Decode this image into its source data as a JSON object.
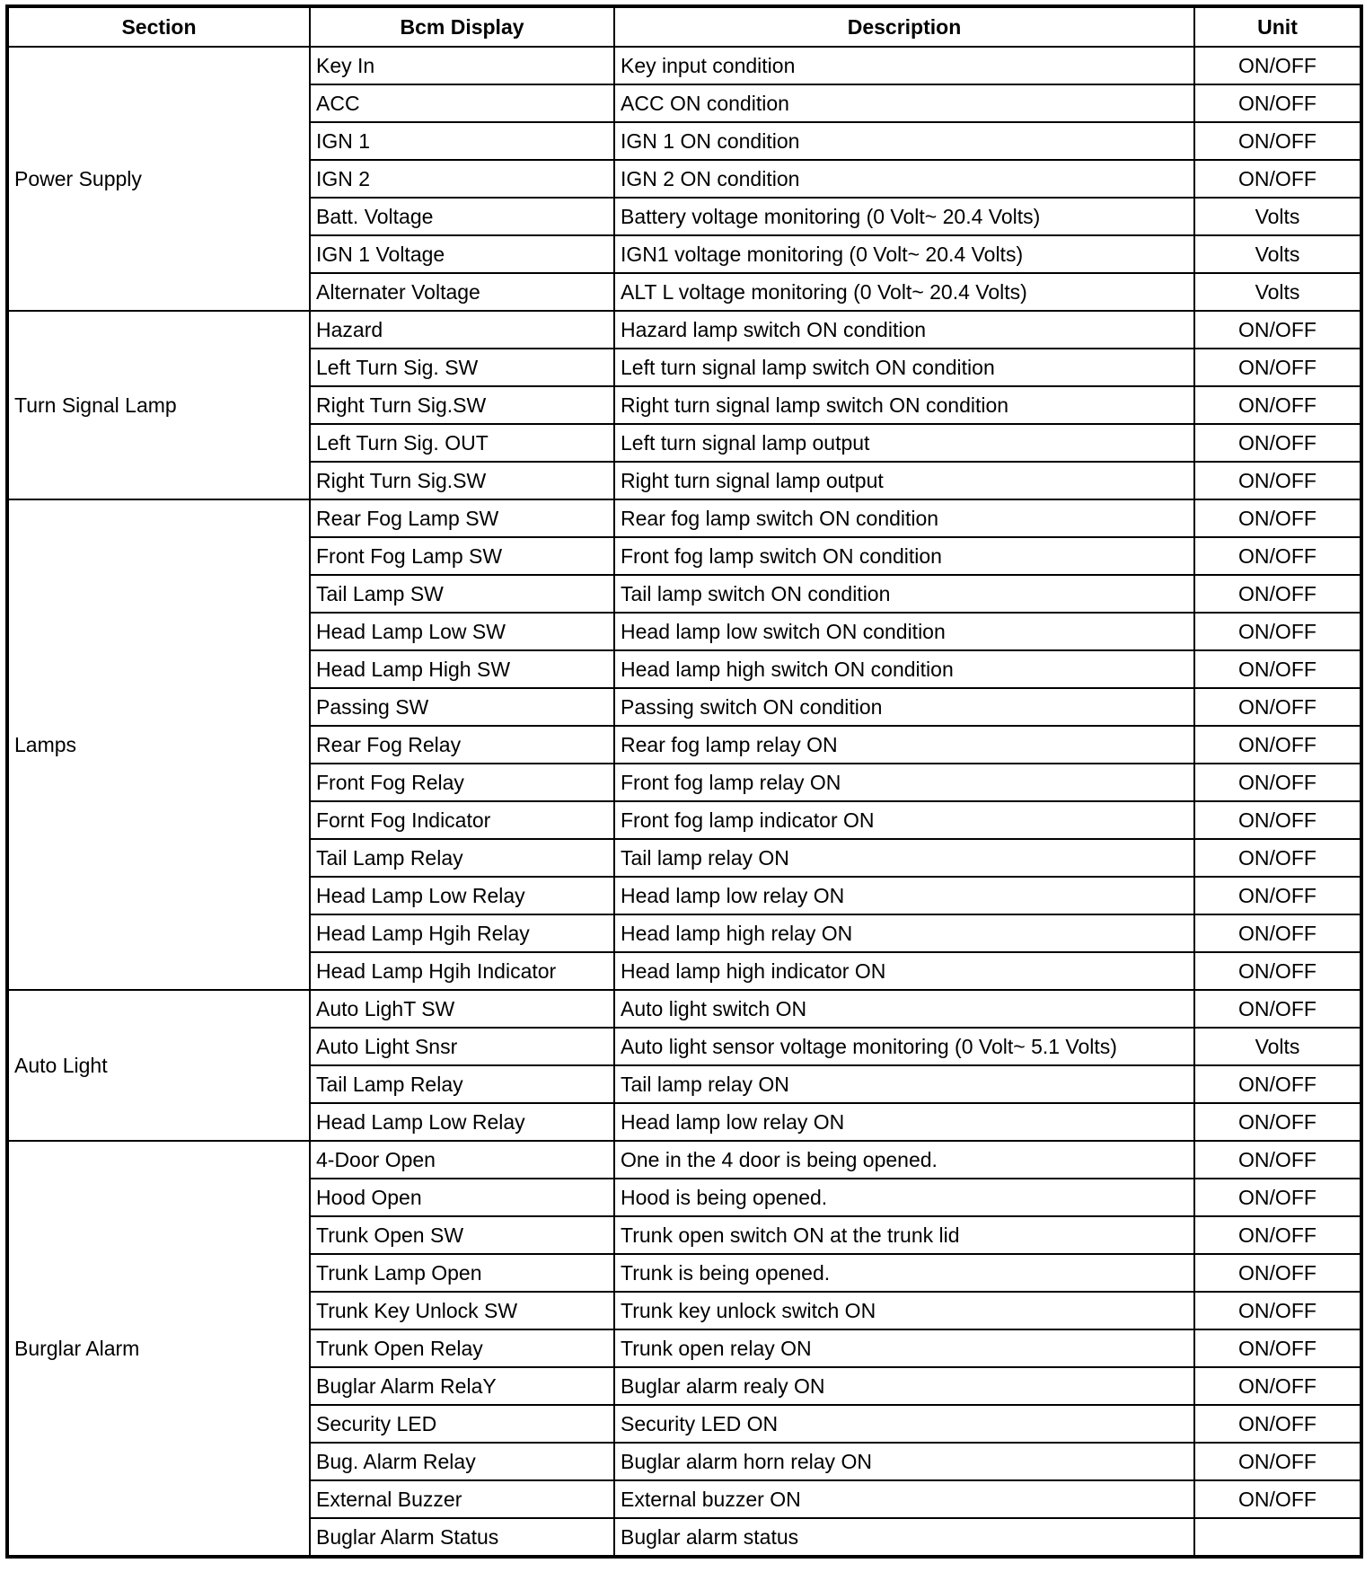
{
  "headers": {
    "section": "Section",
    "display": "Bcm Display",
    "description": "Description",
    "unit": "Unit"
  },
  "sections": [
    {
      "name": "Power Supply",
      "rows": [
        [
          "Key In",
          "Key input condition",
          "ON/OFF"
        ],
        [
          "ACC",
          "ACC ON condition",
          "ON/OFF"
        ],
        [
          "IGN 1",
          "IGN 1 ON condition",
          "ON/OFF"
        ],
        [
          "IGN 2",
          "IGN 2 ON condition",
          "ON/OFF"
        ],
        [
          "Batt. Voltage",
          "Battery voltage monitoring (0 Volt~ 20.4 Volts)",
          "Volts"
        ],
        [
          "IGN 1 Voltage",
          "IGN1 voltage monitoring (0 Volt~ 20.4 Volts)",
          "Volts"
        ],
        [
          "Alternater Voltage",
          "ALT L voltage monitoring (0 Volt~ 20.4 Volts)",
          "Volts"
        ]
      ]
    },
    {
      "name": "Turn Signal Lamp",
      "rows": [
        [
          "Hazard",
          "Hazard lamp switch ON condition",
          "ON/OFF"
        ],
        [
          "Left Turn Sig. SW",
          "Left turn signal lamp switch ON condition",
          "ON/OFF"
        ],
        [
          "Right Turn Sig.SW",
          "Right turn signal lamp switch ON condition",
          "ON/OFF"
        ],
        [
          "Left Turn Sig. OUT",
          "Left turn signal lamp output",
          "ON/OFF"
        ],
        [
          "Right Turn Sig.SW",
          "Right turn signal lamp output",
          "ON/OFF"
        ]
      ]
    },
    {
      "name": "Lamps",
      "rows": [
        [
          "Rear Fog Lamp SW",
          "Rear fog lamp switch ON condition",
          "ON/OFF"
        ],
        [
          "Front Fog Lamp SW",
          "Front fog lamp switch ON condition",
          "ON/OFF"
        ],
        [
          "Tail Lamp SW",
          "Tail lamp switch ON condition",
          "ON/OFF"
        ],
        [
          "Head Lamp Low SW",
          "Head lamp low switch ON condition",
          "ON/OFF"
        ],
        [
          "Head Lamp High SW",
          "Head lamp high switch ON condition",
          "ON/OFF"
        ],
        [
          "Passing SW",
          "Passing switch ON condition",
          "ON/OFF"
        ],
        [
          "Rear Fog Relay",
          "Rear fog lamp relay ON",
          "ON/OFF"
        ],
        [
          "Front Fog Relay",
          "Front fog lamp relay ON",
          "ON/OFF"
        ],
        [
          "Fornt Fog Indicator",
          "Front fog lamp indicator ON",
          "ON/OFF"
        ],
        [
          "Tail Lamp Relay",
          "Tail lamp relay ON",
          "ON/OFF"
        ],
        [
          "Head Lamp Low Relay",
          "Head lamp low relay ON",
          "ON/OFF"
        ],
        [
          "Head Lamp Hgih Relay",
          "Head lamp high relay ON",
          "ON/OFF"
        ],
        [
          "Head Lamp Hgih Indicator",
          "Head lamp high indicator ON",
          "ON/OFF"
        ]
      ]
    },
    {
      "name": "Auto Light",
      "rows": [
        [
          "Auto LighT SW",
          "Auto light switch ON",
          "ON/OFF"
        ],
        [
          "Auto Light Snsr",
          "Auto light sensor voltage monitoring (0 Volt~ 5.1 Volts)",
          "Volts"
        ],
        [
          "Tail Lamp Relay",
          "Tail lamp relay ON",
          "ON/OFF"
        ],
        [
          "Head Lamp Low Relay",
          "Head lamp low relay ON",
          "ON/OFF"
        ]
      ]
    },
    {
      "name": "Burglar Alarm",
      "rows": [
        [
          "4-Door Open",
          "One in the 4 door is being opened.",
          "ON/OFF"
        ],
        [
          "Hood Open",
          "Hood is being opened.",
          "ON/OFF"
        ],
        [
          "Trunk Open SW",
          "Trunk open switch ON at the trunk lid",
          "ON/OFF"
        ],
        [
          "Trunk Lamp Open",
          "Trunk is being opened.",
          "ON/OFF"
        ],
        [
          "Trunk Key Unlock SW",
          "Trunk key unlock switch ON",
          "ON/OFF"
        ],
        [
          "Trunk Open Relay",
          "Trunk open relay ON",
          "ON/OFF"
        ],
        [
          "Buglar Alarm RelaY",
          "Buglar alarm realy ON",
          "ON/OFF"
        ],
        [
          "Security LED",
          "Security LED ON",
          "ON/OFF"
        ],
        [
          "Bug. Alarm Relay",
          "Buglar alarm horn relay ON",
          "ON/OFF"
        ],
        [
          "External Buzzer",
          "External buzzer ON",
          "ON/OFF"
        ],
        [
          "Buglar Alarm Status",
          "Buglar alarm status",
          ""
        ]
      ]
    }
  ]
}
